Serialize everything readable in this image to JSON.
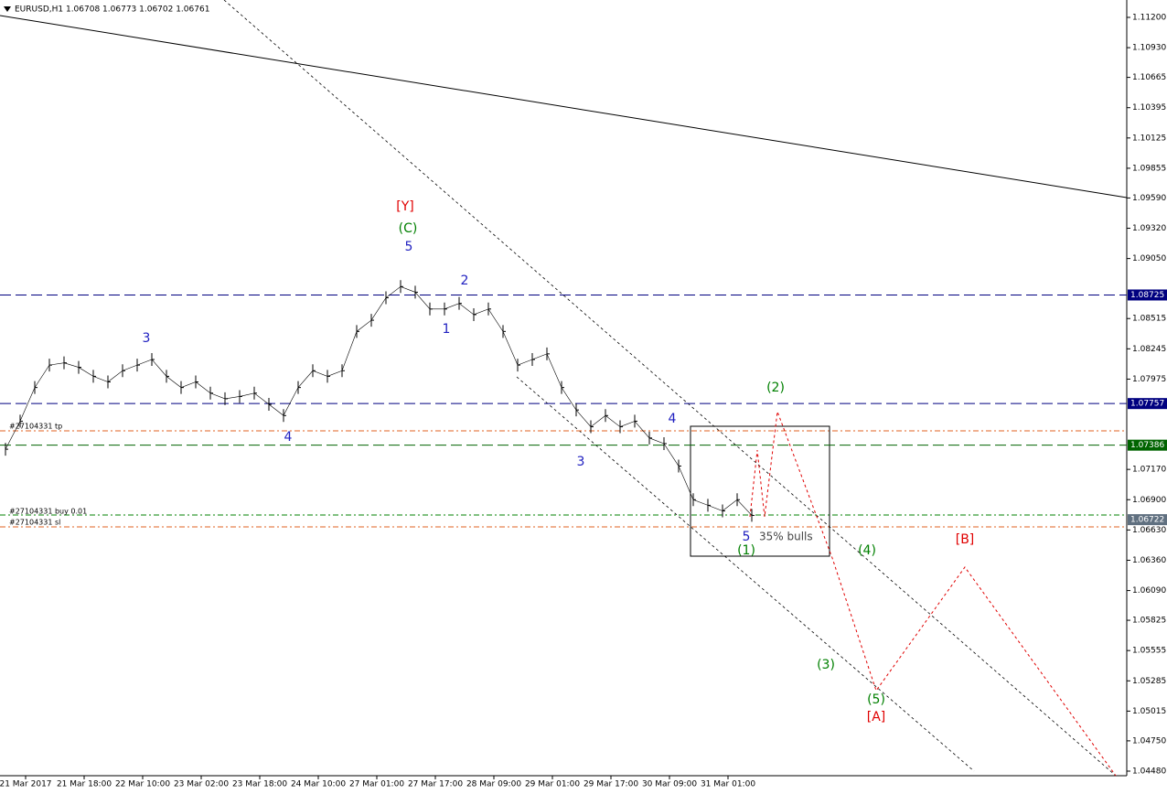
{
  "header": "EURUSD,H1  1.06708 1.06773 1.06702 1.06761",
  "price_axis": {
    "ylim": [
      1.0448,
      1.112
    ],
    "ticks": [
      {
        "value": 1.112,
        "label": "1.11200"
      },
      {
        "value": 1.1093,
        "label": "1.10930"
      },
      {
        "value": 1.10665,
        "label": "1.10665"
      },
      {
        "value": 1.10395,
        "label": "1.10395"
      },
      {
        "value": 1.10125,
        "label": "1.10125"
      },
      {
        "value": 1.09855,
        "label": "1.09855"
      },
      {
        "value": 1.0959,
        "label": "1.09590"
      },
      {
        "value": 1.0932,
        "label": "1.09320"
      },
      {
        "value": 1.0905,
        "label": "1.09050"
      },
      {
        "value": 1.08515,
        "label": "1.08515"
      },
      {
        "value": 1.08245,
        "label": "1.08245"
      },
      {
        "value": 1.07975,
        "label": "1.07975"
      },
      {
        "value": 1.0717,
        "label": "1.07170"
      },
      {
        "value": 1.069,
        "label": "1.06900"
      },
      {
        "value": 1.0663,
        "label": "1.06630"
      },
      {
        "value": 1.0636,
        "label": "1.06360"
      },
      {
        "value": 1.0609,
        "label": "1.06090"
      },
      {
        "value": 1.05825,
        "label": "1.05825"
      },
      {
        "value": 1.05555,
        "label": "1.05555"
      },
      {
        "value": 1.05285,
        "label": "1.05285"
      },
      {
        "value": 1.05015,
        "label": "1.05015"
      },
      {
        "value": 1.0475,
        "label": "1.04750"
      },
      {
        "value": 1.0448,
        "label": "1.04480"
      }
    ]
  },
  "time_axis": [
    "21 Mar 2017",
    "21 Mar 18:00",
    "22 Mar 10:00",
    "23 Mar 02:00",
    "23 Mar 18:00",
    "24 Mar 10:00",
    "27 Mar 01:00",
    "27 Mar 17:00",
    "28 Mar 09:00",
    "29 Mar 01:00",
    "29 Mar 17:00",
    "30 Mar 09:00",
    "31 Mar 01:00"
  ],
  "closes": [
    1.0735,
    1.076,
    1.079,
    1.081,
    1.0812,
    1.0808,
    1.08,
    1.0795,
    1.0805,
    1.081,
    1.0815,
    1.08,
    1.079,
    1.0795,
    1.0785,
    1.078,
    1.0782,
    1.0785,
    1.0775,
    1.0765,
    1.079,
    1.0805,
    1.08,
    1.0805,
    1.084,
    1.085,
    1.087,
    1.088,
    1.0875,
    1.086,
    1.086,
    1.0865,
    1.0855,
    1.086,
    1.084,
    1.081,
    1.0815,
    1.082,
    1.079,
    1.077,
    1.0755,
    1.0765,
    1.0755,
    1.076,
    1.0745,
    1.074,
    1.072,
    1.069,
    1.0685,
    1.068,
    1.069,
    1.0676
  ],
  "levels": [
    {
      "value": 1.08725,
      "color": "#000080"
    },
    {
      "value": 1.07757,
      "color": "#000080"
    },
    {
      "value": 1.07386,
      "color": "#006400"
    },
    {
      "value": 1.06722,
      "color": "#607080"
    }
  ],
  "orders": [
    "#27104331 tp",
    "#27104331 buy 0.01",
    "#27104331 sl"
  ],
  "wave_labels": [
    {
      "text": "[Y]",
      "color": "#e00000"
    },
    {
      "text": "(C)",
      "color": "#008000"
    },
    {
      "text": "5",
      "color": "#2020c0"
    },
    {
      "text": "2",
      "color": "#2020c0"
    },
    {
      "text": "1",
      "color": "#2020c0"
    },
    {
      "text": "3",
      "color": "#2020c0"
    },
    {
      "text": "4",
      "color": "#2020c0"
    },
    {
      "text": "3",
      "color": "#2020c0"
    },
    {
      "text": "4",
      "color": "#2020c0"
    },
    {
      "text": "5",
      "color": "#2020c0"
    },
    {
      "text": "(1)",
      "color": "#008000"
    },
    {
      "text": "(2)",
      "color": "#008000"
    },
    {
      "text": "(4)",
      "color": "#008000"
    },
    {
      "text": "(3)",
      "color": "#008000"
    },
    {
      "text": "(5)",
      "color": "#008000"
    },
    {
      "text": "[A]",
      "color": "#e00000"
    },
    {
      "text": "[B]",
      "color": "#e00000"
    }
  ],
  "annotation": "35% bulls"
}
